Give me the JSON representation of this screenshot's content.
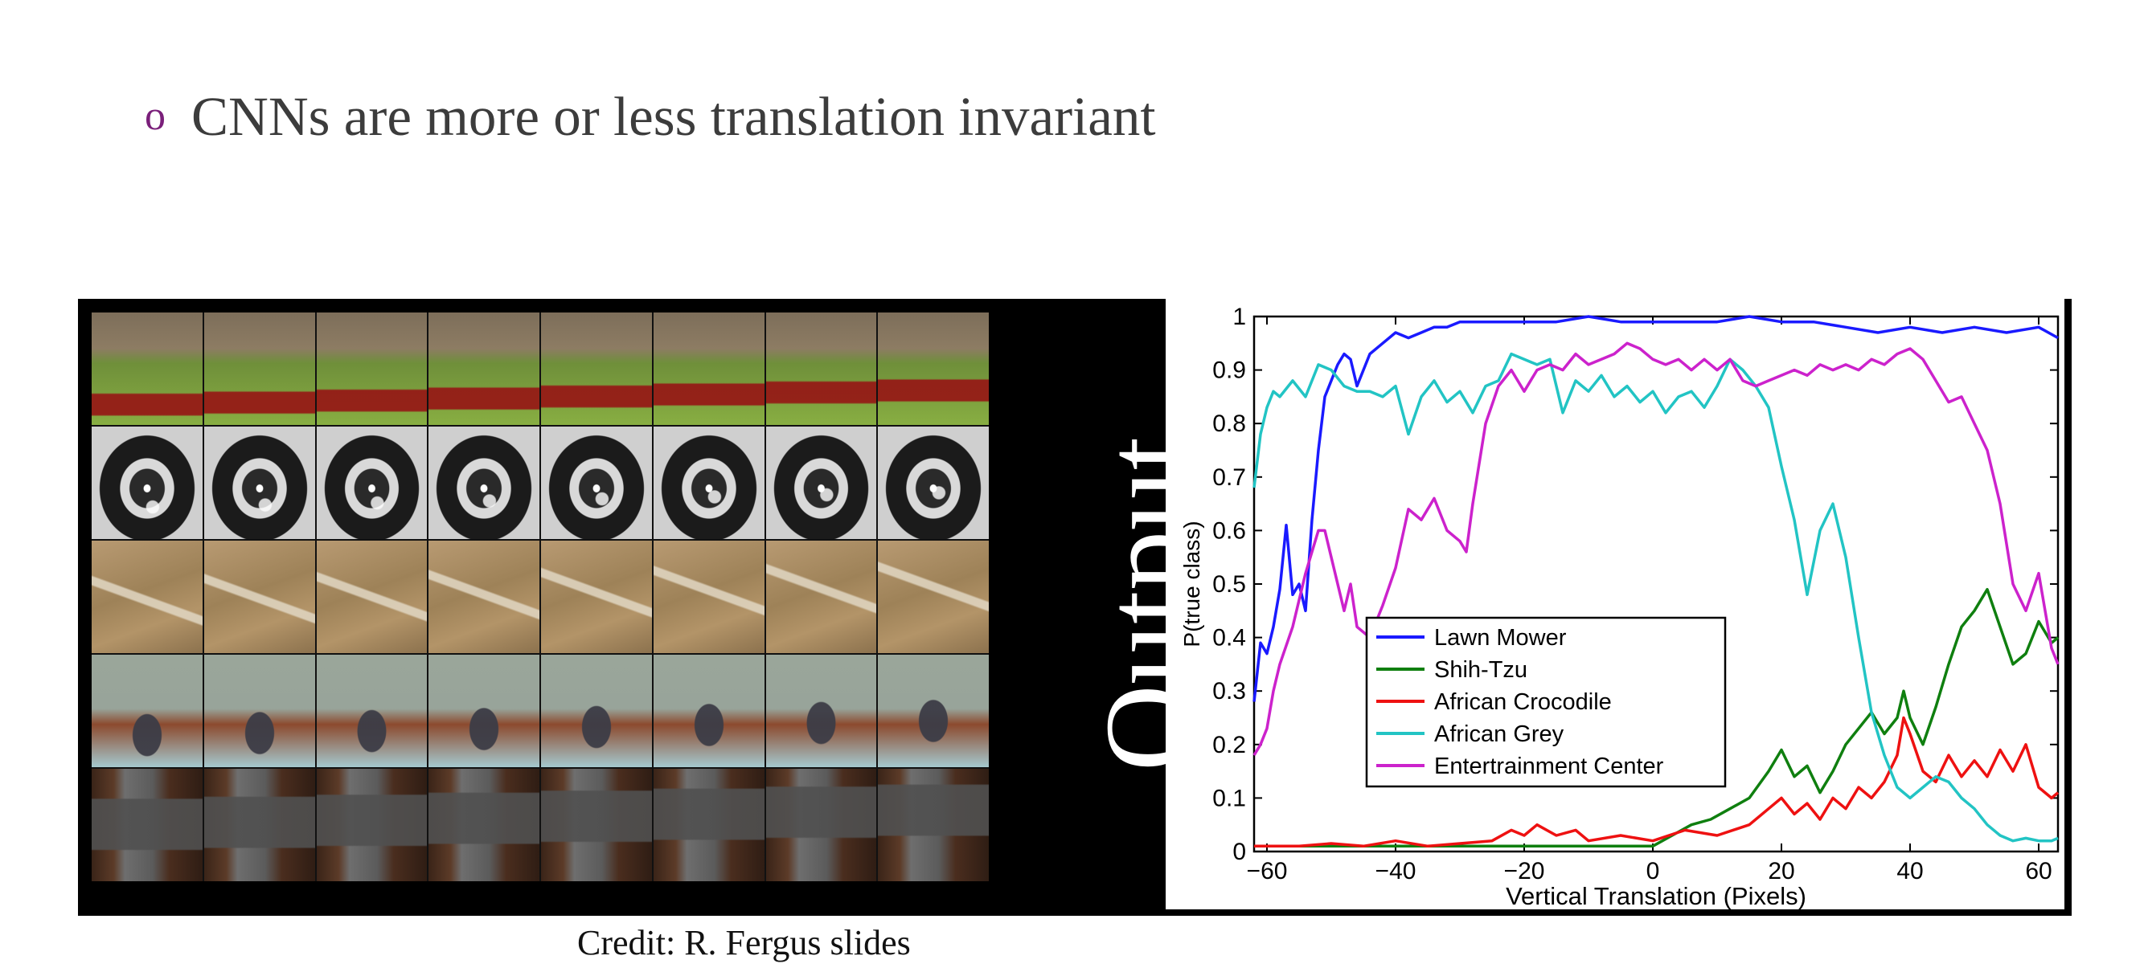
{
  "slide": {
    "bullet_symbol": "o",
    "headline": "CNNs are more or less translation invariant",
    "output_label": "Output",
    "credit": "Credit: R. Fergus slides",
    "accent_color": "#7a1f7a"
  },
  "image_rows": [
    {
      "subject": "lawn mower",
      "tiles": 8
    },
    {
      "subject": "shih-tzu dog",
      "tiles": 8
    },
    {
      "subject": "african crocodile",
      "tiles": 8
    },
    {
      "subject": "african grey parrot",
      "tiles": 8
    },
    {
      "subject": "entertainment center",
      "tiles": 8
    }
  ],
  "chart_data": {
    "type": "line",
    "title": "",
    "xlabel": "Vertical Translation (Pixels)",
    "ylabel": "P(true class)",
    "xlim": [
      -62,
      63
    ],
    "ylim": [
      0,
      1
    ],
    "xticks": [
      -60,
      -40,
      -20,
      0,
      20,
      40,
      60
    ],
    "yticks": [
      0,
      0.1,
      0.2,
      0.3,
      0.4,
      0.5,
      0.6,
      0.7,
      0.8,
      0.9,
      1
    ],
    "ytick_labels": [
      "0",
      "0.1",
      "0.2",
      "0.3",
      "0.4",
      "0.5",
      "0.6",
      "0.7",
      "0.8",
      "0.9",
      "1"
    ],
    "grid": false,
    "legend_position": "lower-left",
    "series": [
      {
        "name": "Lawn Mower",
        "color": "#1a1aff",
        "x": [
          -62,
          -61,
          -60,
          -59,
          -58,
          -57,
          -56,
          -55,
          -54,
          -53,
          -52,
          -51,
          -50,
          -49,
          -48,
          -47,
          -46,
          -45,
          -44,
          -42,
          -40,
          -38,
          -36,
          -34,
          -32,
          -30,
          -25,
          -20,
          -15,
          -10,
          -5,
          0,
          5,
          10,
          15,
          20,
          25,
          30,
          35,
          40,
          45,
          50,
          55,
          60,
          63
        ],
        "y": [
          0.28,
          0.39,
          0.37,
          0.42,
          0.49,
          0.61,
          0.48,
          0.5,
          0.45,
          0.62,
          0.75,
          0.85,
          0.88,
          0.91,
          0.93,
          0.92,
          0.87,
          0.9,
          0.93,
          0.95,
          0.97,
          0.96,
          0.97,
          0.98,
          0.98,
          0.99,
          0.99,
          0.99,
          0.99,
          1.0,
          0.99,
          0.99,
          0.99,
          0.99,
          1.0,
          0.99,
          0.99,
          0.98,
          0.97,
          0.98,
          0.97,
          0.98,
          0.97,
          0.98,
          0.96
        ]
      },
      {
        "name": "Shih-Tzu",
        "color": "#0f7f0f",
        "x": [
          -62,
          -50,
          -40,
          -30,
          -20,
          -10,
          -5,
          0,
          3,
          6,
          9,
          12,
          15,
          18,
          20,
          22,
          24,
          26,
          28,
          30,
          32,
          34,
          36,
          38,
          39,
          40,
          42,
          44,
          46,
          48,
          50,
          52,
          54,
          56,
          58,
          60,
          62,
          63
        ],
        "y": [
          0.01,
          0.01,
          0.01,
          0.01,
          0.01,
          0.01,
          0.01,
          0.01,
          0.03,
          0.05,
          0.06,
          0.08,
          0.1,
          0.15,
          0.19,
          0.14,
          0.16,
          0.11,
          0.15,
          0.2,
          0.23,
          0.26,
          0.22,
          0.25,
          0.3,
          0.25,
          0.2,
          0.27,
          0.35,
          0.42,
          0.45,
          0.49,
          0.42,
          0.35,
          0.37,
          0.43,
          0.39,
          0.4
        ]
      },
      {
        "name": "African Crocodile",
        "color": "#ee1111",
        "x": [
          -62,
          -55,
          -50,
          -45,
          -40,
          -35,
          -30,
          -25,
          -22,
          -20,
          -18,
          -15,
          -12,
          -10,
          -5,
          0,
          5,
          10,
          15,
          18,
          20,
          22,
          24,
          26,
          28,
          30,
          32,
          34,
          36,
          38,
          39,
          40,
          42,
          44,
          46,
          48,
          50,
          52,
          54,
          56,
          58,
          60,
          62,
          63
        ],
        "y": [
          0.01,
          0.01,
          0.015,
          0.01,
          0.02,
          0.01,
          0.015,
          0.02,
          0.04,
          0.03,
          0.05,
          0.03,
          0.04,
          0.02,
          0.03,
          0.02,
          0.04,
          0.03,
          0.05,
          0.08,
          0.1,
          0.07,
          0.09,
          0.06,
          0.1,
          0.08,
          0.12,
          0.1,
          0.13,
          0.18,
          0.25,
          0.22,
          0.15,
          0.13,
          0.18,
          0.14,
          0.17,
          0.14,
          0.19,
          0.15,
          0.2,
          0.12,
          0.1,
          0.11
        ]
      },
      {
        "name": "African Grey",
        "color": "#22c4c4",
        "x": [
          -62,
          -61,
          -60,
          -59,
          -58,
          -56,
          -54,
          -52,
          -50,
          -48,
          -46,
          -44,
          -42,
          -40,
          -38,
          -36,
          -34,
          -32,
          -30,
          -28,
          -26,
          -24,
          -22,
          -20,
          -18,
          -16,
          -14,
          -12,
          -10,
          -8,
          -6,
          -4,
          -2,
          0,
          2,
          4,
          6,
          8,
          10,
          12,
          14,
          16,
          18,
          20,
          22,
          24,
          26,
          28,
          30,
          32,
          34,
          36,
          38,
          40,
          42,
          44,
          46,
          48,
          50,
          52,
          54,
          56,
          58,
          60,
          62,
          63
        ],
        "y": [
          0.68,
          0.78,
          0.83,
          0.86,
          0.85,
          0.88,
          0.85,
          0.91,
          0.9,
          0.87,
          0.86,
          0.86,
          0.85,
          0.87,
          0.78,
          0.85,
          0.88,
          0.84,
          0.86,
          0.82,
          0.87,
          0.88,
          0.93,
          0.92,
          0.91,
          0.92,
          0.82,
          0.88,
          0.86,
          0.89,
          0.85,
          0.87,
          0.84,
          0.86,
          0.82,
          0.85,
          0.86,
          0.83,
          0.87,
          0.92,
          0.9,
          0.87,
          0.83,
          0.72,
          0.62,
          0.48,
          0.6,
          0.65,
          0.55,
          0.4,
          0.26,
          0.18,
          0.12,
          0.1,
          0.12,
          0.14,
          0.13,
          0.1,
          0.08,
          0.05,
          0.03,
          0.02,
          0.025,
          0.02,
          0.02,
          0.025
        ]
      },
      {
        "name": "Entertrainment Center",
        "color": "#cc22cc",
        "x": [
          -62,
          -61,
          -60,
          -59,
          -58,
          -56,
          -54,
          -52,
          -51,
          -50,
          -48,
          -47,
          -46,
          -44,
          -42,
          -40,
          -38,
          -36,
          -34,
          -32,
          -30,
          -29,
          -28,
          -26,
          -24,
          -22,
          -20,
          -18,
          -16,
          -14,
          -12,
          -10,
          -8,
          -6,
          -4,
          -2,
          0,
          2,
          4,
          6,
          8,
          10,
          12,
          14,
          16,
          18,
          20,
          22,
          24,
          26,
          28,
          30,
          32,
          34,
          36,
          38,
          40,
          42,
          44,
          46,
          48,
          50,
          52,
          54,
          56,
          58,
          60,
          62,
          63
        ],
        "y": [
          0.18,
          0.2,
          0.23,
          0.3,
          0.35,
          0.42,
          0.52,
          0.6,
          0.6,
          0.55,
          0.45,
          0.5,
          0.42,
          0.4,
          0.46,
          0.53,
          0.64,
          0.62,
          0.66,
          0.6,
          0.58,
          0.56,
          0.65,
          0.8,
          0.87,
          0.9,
          0.86,
          0.9,
          0.91,
          0.9,
          0.93,
          0.91,
          0.92,
          0.93,
          0.95,
          0.94,
          0.92,
          0.91,
          0.92,
          0.9,
          0.92,
          0.9,
          0.92,
          0.88,
          0.87,
          0.88,
          0.89,
          0.9,
          0.89,
          0.91,
          0.9,
          0.91,
          0.9,
          0.92,
          0.91,
          0.93,
          0.94,
          0.92,
          0.88,
          0.84,
          0.85,
          0.8,
          0.75,
          0.65,
          0.5,
          0.45,
          0.52,
          0.38,
          0.35
        ]
      }
    ]
  }
}
